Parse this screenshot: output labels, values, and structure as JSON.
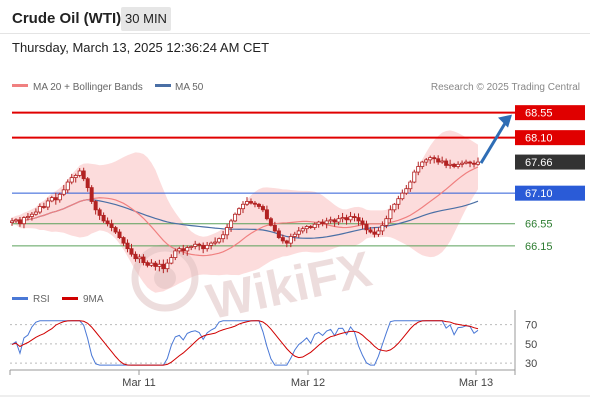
{
  "header": {
    "title": "Crude Oil (WTI)",
    "timeframe": "30 MIN",
    "datetime": "Thursday, March 13, 2025 12:36:24 AM CET"
  },
  "colors": {
    "candle": "#b22222",
    "ma20": "#f08080",
    "band_fill": "#fbd3d3",
    "ma50": "#4a6fa5",
    "resistance": "#e00000",
    "pivot": "#2a5bd7",
    "support": "#5aa05a",
    "support_text": "#2e7d32",
    "current": "#333333",
    "rsi": "#4a78d6",
    "rsi_ma": "#d00000",
    "arrow": "#2f6db5",
    "watermark": "#e0c2c2"
  },
  "chart_data": [
    {
      "type": "candlestick",
      "title": "",
      "legend": [
        {
          "name": "MA 20 + Bollinger Bands",
          "color": "#f08080"
        },
        {
          "name": "MA 50",
          "color": "#4a6fa5"
        }
      ],
      "legend_position": "top-left",
      "credit": "Research © 2025 Trading Central",
      "x_ticks": [
        "Mar 11",
        "Mar 12",
        "Mar 13"
      ],
      "ylim": [
        65.5,
        68.85
      ],
      "levels": [
        {
          "value": 68.55,
          "label": "68.55",
          "kind": "resistance"
        },
        {
          "value": 68.1,
          "label": "68.10",
          "kind": "resistance"
        },
        {
          "value": 67.66,
          "label": "67.66",
          "kind": "current"
        },
        {
          "value": 67.1,
          "label": "67.10",
          "kind": "pivot"
        },
        {
          "value": 66.55,
          "label": "66.55",
          "kind": "support"
        },
        {
          "value": 66.15,
          "label": "66.15",
          "kind": "support"
        }
      ],
      "forecast_arrow": {
        "from": 67.66,
        "to": 68.55
      },
      "close_series": [
        66.6,
        66.62,
        66.55,
        66.66,
        66.68,
        66.72,
        66.76,
        66.86,
        66.85,
        66.96,
        67.02,
        66.98,
        67.08,
        67.16,
        67.3,
        67.38,
        67.42,
        67.5,
        67.36,
        67.2,
        66.95,
        66.8,
        66.7,
        66.6,
        66.55,
        66.48,
        66.4,
        66.3,
        66.2,
        66.1,
        66.0,
        65.92,
        65.95,
        65.85,
        65.8,
        65.84,
        65.78,
        65.82,
        65.74,
        65.84,
        65.94,
        66.06,
        66.1,
        66.06,
        66.12,
        66.14,
        66.18,
        66.16,
        66.1,
        66.16,
        66.2,
        66.22,
        66.28,
        66.35,
        66.48,
        66.6,
        66.72,
        66.82,
        66.9,
        66.95,
        66.92,
        66.9,
        66.86,
        66.8,
        66.64,
        66.52,
        66.42,
        66.3,
        66.24,
        66.2,
        66.32,
        66.36,
        66.42,
        66.46,
        66.5,
        66.48,
        66.54,
        66.58,
        66.55,
        66.6,
        66.62,
        66.58,
        66.64,
        66.66,
        66.62,
        66.68,
        66.66,
        66.6,
        66.54,
        66.44,
        66.4,
        66.36,
        66.42,
        66.52,
        66.64,
        66.8,
        66.9,
        67.0,
        67.1,
        67.18,
        67.3,
        67.48,
        67.58,
        67.66,
        67.7,
        67.74,
        67.72,
        67.66,
        67.68,
        67.6,
        67.62,
        67.58,
        67.62,
        67.64,
        67.66,
        67.64,
        67.62,
        67.66
      ]
    },
    {
      "type": "line",
      "title": "",
      "series": [
        {
          "name": "RSI",
          "color": "#4a78d6"
        },
        {
          "name": "9MA",
          "color": "#d00000"
        }
      ],
      "legend_position": "top-left",
      "y_ticks": [
        70,
        50,
        30
      ],
      "ylim": [
        25,
        80
      ]
    }
  ]
}
